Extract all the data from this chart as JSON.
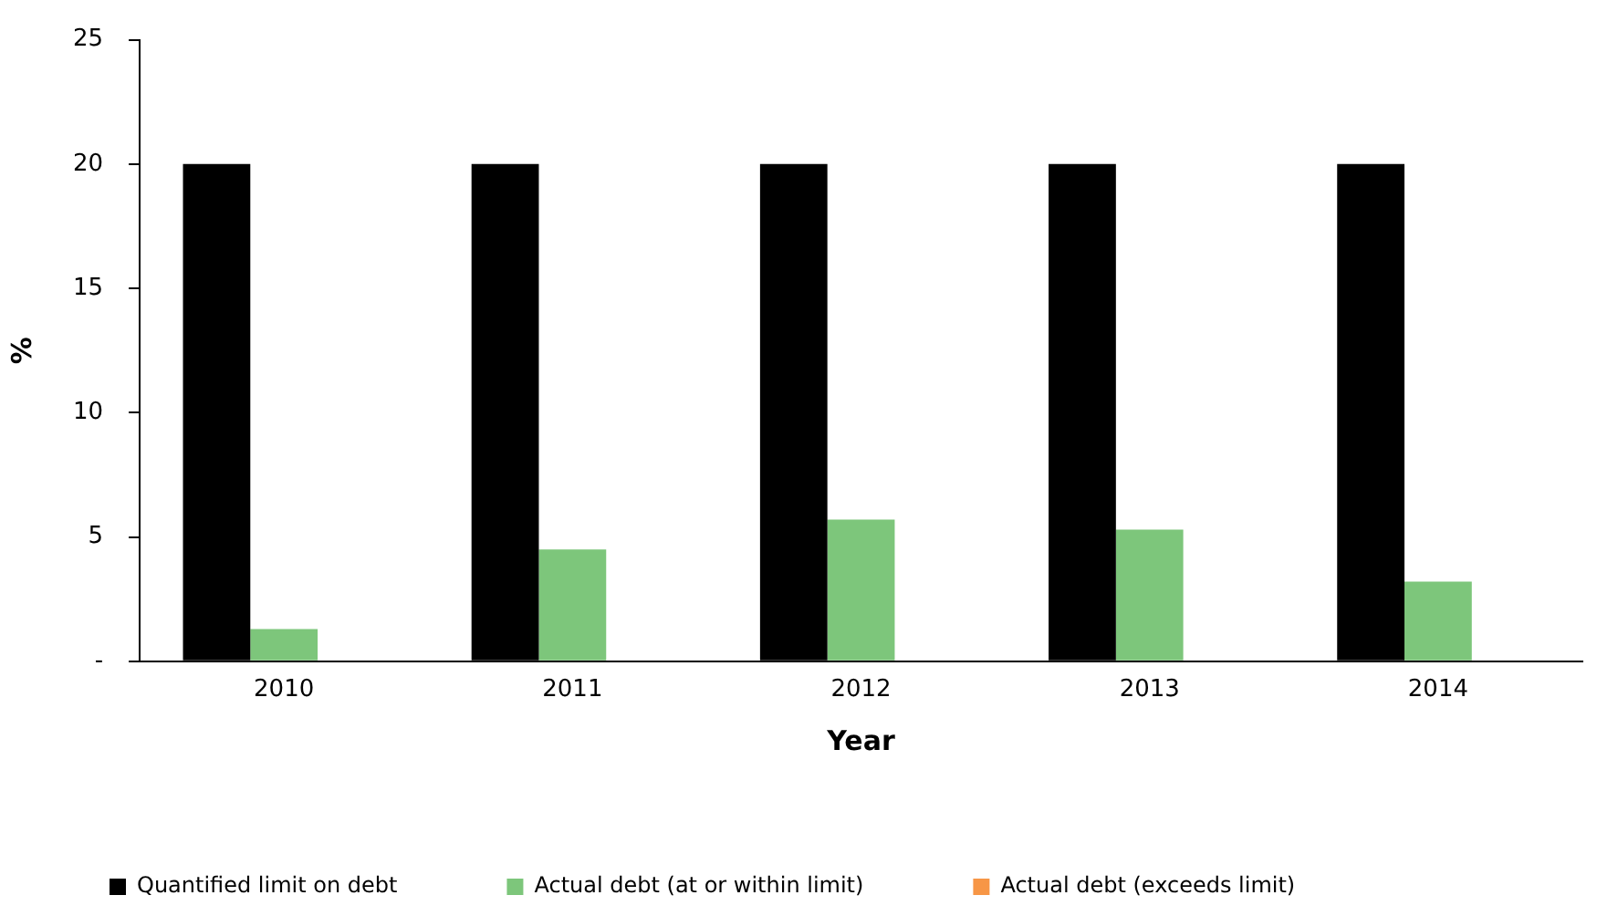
{
  "chart_data": {
    "type": "bar",
    "xlabel": "Year",
    "ylabel": "%",
    "categories": [
      "2010",
      "2011",
      "2012",
      "2013",
      "2014"
    ],
    "series": [
      {
        "name": "Quantified limit on debt",
        "color": "#000000",
        "values": [
          20,
          20,
          20,
          20,
          20
        ]
      },
      {
        "name": "Actual debt (at or within limit)",
        "color": "#7dc67b",
        "values": [
          1.3,
          4.5,
          5.7,
          5.3,
          3.2
        ]
      },
      {
        "name": "Actual debt (exceeds limit)",
        "color": "#f79646",
        "values": [
          null,
          null,
          null,
          null,
          null
        ]
      }
    ],
    "ylim": [
      0,
      25
    ],
    "yticks": [
      {
        "value": 0,
        "label": "-"
      },
      5,
      10,
      15,
      20,
      25
    ],
    "grid": false,
    "legend": "bottom"
  }
}
